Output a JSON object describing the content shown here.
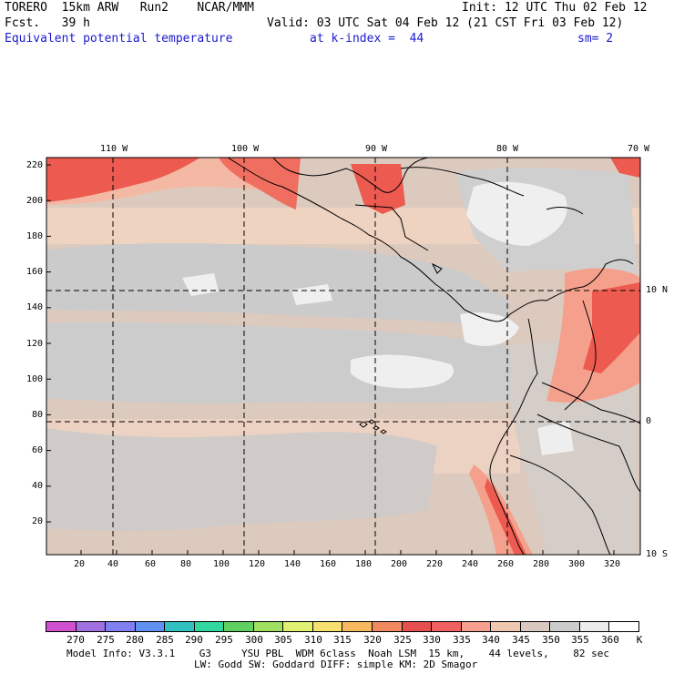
{
  "header": {
    "model": "TORERO  15km ARW   Run2    NCAR/MMM",
    "init": "Init: 12 UTC Thu 02 Feb 12",
    "fcst": "Fcst.   39 h",
    "valid": "Valid: 03 UTC Sat 04 Feb 12 (21 CST Fri 03 Feb 12)",
    "field": "Equivalent potential temperature",
    "level": "at k-index =  44",
    "smooth": "sm= 2"
  },
  "map": {
    "lon_labels": [
      "110 W",
      "100 W",
      "90 W",
      "80 W",
      "70 W"
    ],
    "lat_labels": [
      "10 N",
      "0",
      "10 S"
    ],
    "y_ticks": [
      "220",
      "200",
      "180",
      "160",
      "140",
      "120",
      "100",
      "80",
      "60",
      "40",
      "20"
    ],
    "x_ticks": [
      "20",
      "40",
      "60",
      "80",
      "100",
      "120",
      "140",
      "160",
      "180",
      "200",
      "220",
      "240",
      "260",
      "280",
      "300",
      "320"
    ]
  },
  "colorbar": {
    "labels": [
      "270",
      "275",
      "280",
      "285",
      "290",
      "295",
      "300",
      "305",
      "310",
      "315",
      "320",
      "325",
      "330",
      "335",
      "340",
      "345",
      "350",
      "355",
      "360"
    ],
    "unit": "K",
    "colors": [
      "#d050d0",
      "#a070e0",
      "#8080f0",
      "#6090f0",
      "#30c0c0",
      "#30d8a0",
      "#60d060",
      "#a0e060",
      "#e0f070",
      "#f8e070",
      "#f8b860",
      "#f08860",
      "#e85050",
      "#f06060",
      "#f8a090",
      "#f0c8b0",
      "#d8c8c0",
      "#cccccc",
      "#ececec",
      "#ffffff"
    ]
  },
  "footer": {
    "line1": "Model Info: V3.3.1    G3     YSU PBL  WDM 6class  Noah LSM  15 km,    44 levels,    82 sec",
    "line2": "LW: Godd SW: Goddard DIFF: simple KM: 2D Smagor"
  },
  "colors": {
    "land_tan": "#e8cfc0",
    "pale_peach": "#efd4c2",
    "mid_gray": "#d2cdc8",
    "light_gray": "#c9c9c9",
    "white_patch": "#f2f2f2",
    "salmon": "#f5a08c",
    "red": "#ec5a50"
  }
}
